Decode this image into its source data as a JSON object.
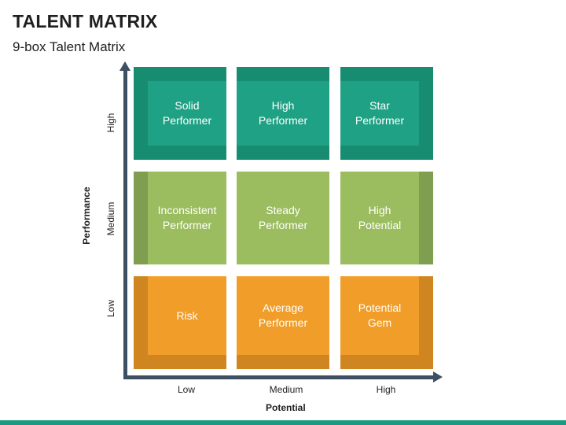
{
  "title": "TALENT MATRIX",
  "subtitle": "9-box Talent Matrix",
  "axes": {
    "y_title": "Performance",
    "x_title": "Potential",
    "y_levels": [
      "High",
      "Medium",
      "Low"
    ],
    "x_levels": [
      "Low",
      "Medium",
      "High"
    ]
  },
  "grid": {
    "high": [
      {
        "label_1": "Solid",
        "label_2": "Performer"
      },
      {
        "label_1": "High",
        "label_2": "Performer"
      },
      {
        "label_1": "Star",
        "label_2": "Performer"
      }
    ],
    "medium": [
      {
        "label_1": "Inconsistent",
        "label_2": "Performer"
      },
      {
        "label_1": "Steady",
        "label_2": "Performer"
      },
      {
        "label_1": "High",
        "label_2": "Potential"
      }
    ],
    "low": [
      {
        "label_1": "Risk",
        "label_2": ""
      },
      {
        "label_1": "Average",
        "label_2": "Performer"
      },
      {
        "label_1": "Potential",
        "label_2": "Gem"
      }
    ]
  },
  "colors": {
    "high_row": "#1fa185",
    "medium_row": "#9bbc5f",
    "low_row": "#f09d29",
    "axis": "#3d4f63",
    "accent_bar": "#1a9a80"
  }
}
